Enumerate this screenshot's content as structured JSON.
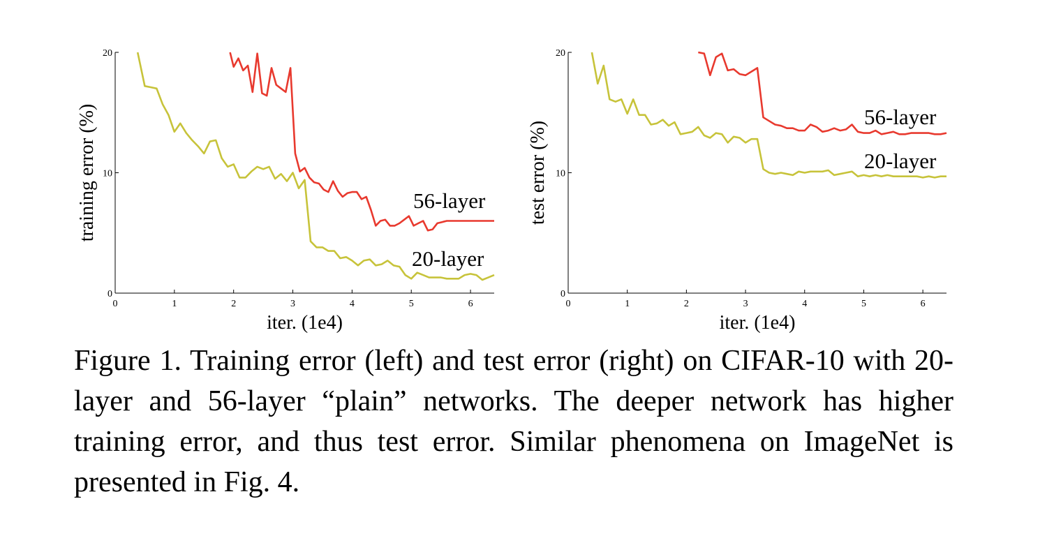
{
  "chart_data": [
    {
      "type": "line",
      "ylabel": "training error (%)",
      "xlabel": "iter. (1e4)",
      "xlim": [
        0,
        6.4
      ],
      "ylim": [
        0,
        20
      ],
      "xticks": [
        "0",
        "1",
        "2",
        "3",
        "4",
        "5",
        "6"
      ],
      "yticks": [
        "0",
        "10",
        "20"
      ],
      "grid": false,
      "series": [
        {
          "name": "56-layer",
          "color": "#e8392e",
          "x": [
            1.94,
            2.0,
            2.08,
            2.16,
            2.24,
            2.32,
            2.4,
            2.48,
            2.56,
            2.64,
            2.72,
            2.8,
            2.88,
            2.96,
            3.04,
            3.12,
            3.2,
            3.28,
            3.36,
            3.44,
            3.52,
            3.6,
            3.68,
            3.76,
            3.84,
            3.92,
            4.0,
            4.08,
            4.16,
            4.24,
            4.32,
            4.4,
            4.48,
            4.56,
            4.64,
            4.72,
            4.8,
            4.88,
            4.96,
            5.04,
            5.12,
            5.2,
            5.28,
            5.36,
            5.44,
            5.52,
            5.6,
            5.68,
            5.76,
            5.84,
            5.92,
            6.0,
            6.08,
            6.16,
            6.24,
            6.32,
            6.4
          ],
          "y": [
            20.0,
            18.8,
            19.5,
            18.5,
            18.9,
            16.7,
            19.9,
            16.6,
            16.4,
            18.7,
            17.3,
            17.0,
            16.7,
            18.7,
            11.6,
            10.1,
            10.4,
            9.6,
            9.2,
            9.1,
            8.6,
            8.4,
            9.3,
            8.5,
            8.0,
            8.3,
            8.4,
            8.4,
            7.8,
            8.0,
            6.9,
            5.6,
            6.0,
            6.1,
            5.6,
            5.6,
            5.8,
            6.1,
            6.4,
            5.6,
            5.8,
            6.0,
            5.2,
            5.3,
            5.8,
            5.9,
            6.0,
            6.0,
            6.0,
            6.0,
            6.0,
            6.0,
            6.0,
            6.0,
            6.0,
            6.0,
            6.0
          ]
        },
        {
          "name": "20-layer",
          "color": "#c7c33a",
          "x": [
            0.38,
            0.5,
            0.6,
            0.7,
            0.8,
            0.9,
            1.0,
            1.1,
            1.2,
            1.3,
            1.4,
            1.5,
            1.6,
            1.7,
            1.8,
            1.9,
            2.0,
            2.1,
            2.2,
            2.3,
            2.4,
            2.5,
            2.6,
            2.7,
            2.8,
            2.9,
            3.0,
            3.1,
            3.2,
            3.3,
            3.4,
            3.5,
            3.6,
            3.7,
            3.8,
            3.9,
            4.0,
            4.1,
            4.2,
            4.3,
            4.4,
            4.5,
            4.6,
            4.7,
            4.8,
            4.9,
            5.0,
            5.1,
            5.2,
            5.3,
            5.4,
            5.5,
            5.6,
            5.7,
            5.8,
            5.9,
            6.0,
            6.1,
            6.2,
            6.3,
            6.4
          ],
          "y": [
            20.0,
            17.2,
            17.1,
            17.0,
            15.7,
            14.8,
            13.4,
            14.1,
            13.3,
            12.7,
            12.2,
            11.6,
            12.6,
            12.7,
            11.2,
            10.5,
            10.7,
            9.6,
            9.6,
            10.1,
            10.5,
            10.3,
            10.5,
            9.5,
            9.9,
            9.3,
            10.0,
            8.7,
            9.4,
            4.3,
            3.8,
            3.8,
            3.5,
            3.5,
            2.9,
            3.0,
            2.7,
            2.3,
            2.7,
            2.8,
            2.3,
            2.4,
            2.7,
            2.3,
            2.2,
            1.5,
            1.2,
            1.7,
            1.5,
            1.3,
            1.3,
            1.3,
            1.2,
            1.2,
            1.2,
            1.5,
            1.6,
            1.5,
            1.1,
            1.3,
            1.5
          ]
        }
      ]
    },
    {
      "type": "line",
      "ylabel": "test error (%)",
      "xlabel": "iter. (1e4)",
      "xlim": [
        0,
        6.4
      ],
      "ylim": [
        0,
        20
      ],
      "xticks": [
        "0",
        "1",
        "2",
        "3",
        "4",
        "5",
        "6"
      ],
      "yticks": [
        "0",
        "10",
        "20"
      ],
      "grid": false,
      "series": [
        {
          "name": "56-layer",
          "color": "#e8392e",
          "x": [
            2.2,
            2.3,
            2.4,
            2.5,
            2.6,
            2.7,
            2.8,
            2.9,
            3.0,
            3.1,
            3.2,
            3.3,
            3.4,
            3.5,
            3.6,
            3.7,
            3.8,
            3.9,
            4.0,
            4.1,
            4.2,
            4.3,
            4.4,
            4.5,
            4.6,
            4.7,
            4.8,
            4.9,
            5.0,
            5.1,
            5.2,
            5.3,
            5.4,
            5.5,
            5.6,
            5.7,
            5.8,
            5.9,
            6.0,
            6.1,
            6.2,
            6.3,
            6.4
          ],
          "y": [
            20.0,
            19.9,
            18.1,
            19.6,
            19.9,
            18.5,
            18.6,
            18.2,
            18.1,
            18.4,
            18.7,
            14.6,
            14.3,
            14.0,
            13.9,
            13.7,
            13.7,
            13.5,
            13.5,
            14.0,
            13.8,
            13.4,
            13.5,
            13.7,
            13.5,
            13.6,
            14.0,
            13.4,
            13.3,
            13.3,
            13.5,
            13.2,
            13.3,
            13.4,
            13.2,
            13.2,
            13.3,
            13.3,
            13.3,
            13.3,
            13.2,
            13.2,
            13.3
          ]
        },
        {
          "name": "20-layer",
          "color": "#c7c33a",
          "x": [
            0.4,
            0.5,
            0.6,
            0.7,
            0.8,
            0.9,
            1.0,
            1.1,
            1.2,
            1.3,
            1.4,
            1.5,
            1.6,
            1.7,
            1.8,
            1.9,
            2.0,
            2.1,
            2.2,
            2.3,
            2.4,
            2.5,
            2.6,
            2.7,
            2.8,
            2.9,
            3.0,
            3.1,
            3.2,
            3.3,
            3.4,
            3.5,
            3.6,
            3.7,
            3.8,
            3.9,
            4.0,
            4.1,
            4.2,
            4.3,
            4.4,
            4.5,
            4.6,
            4.7,
            4.8,
            4.9,
            5.0,
            5.1,
            5.2,
            5.3,
            5.4,
            5.5,
            5.6,
            5.7,
            5.8,
            5.9,
            6.0,
            6.1,
            6.2,
            6.3,
            6.4
          ],
          "y": [
            20.0,
            17.4,
            18.9,
            16.1,
            15.9,
            16.1,
            14.9,
            16.1,
            14.8,
            14.8,
            14.0,
            14.1,
            14.4,
            13.9,
            14.2,
            13.2,
            13.3,
            13.4,
            13.8,
            13.1,
            12.9,
            13.3,
            13.2,
            12.5,
            13.0,
            12.9,
            12.5,
            12.8,
            12.8,
            10.3,
            10.0,
            9.9,
            10.0,
            9.9,
            9.8,
            10.1,
            10.0,
            10.1,
            10.1,
            10.1,
            10.2,
            9.8,
            9.9,
            10.0,
            10.1,
            9.7,
            9.8,
            9.7,
            9.8,
            9.7,
            9.8,
            9.7,
            9.7,
            9.7,
            9.7,
            9.7,
            9.6,
            9.7,
            9.6,
            9.7,
            9.7
          ]
        }
      ]
    }
  ],
  "caption": "Figure 1. Training error (left) and test error (right) on CIFAR-10 with 20-layer and 56-layer “plain” networks. The deeper network has higher training error, and thus test error.  Similar phenomena on ImageNet is presented in Fig. 4."
}
